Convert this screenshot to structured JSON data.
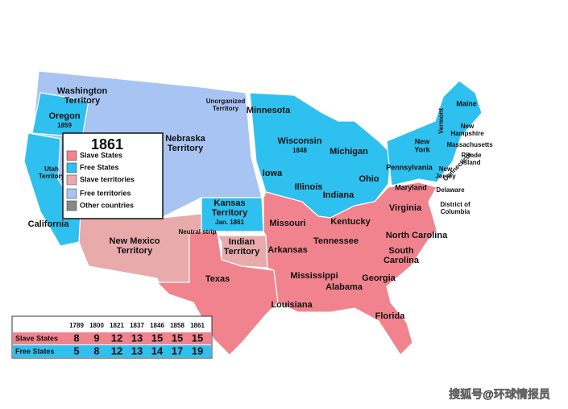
{
  "legend": {
    "title": "1861",
    "items": [
      {
        "label": "Slave States",
        "color": "#f0838d"
      },
      {
        "label": "Free States",
        "color": "#2ec0ee"
      },
      {
        "label": "Slave territories",
        "color": "#e8aaaa"
      },
      {
        "label": "Free territories",
        "color": "#a8c4f2"
      },
      {
        "label": "Other countries",
        "color": "#888888"
      }
    ]
  },
  "labels": [
    {
      "lines": [
        "Washington",
        "Territory"
      ]
    },
    {
      "lines": [
        "Oregon"
      ],
      "note": "1859"
    },
    {
      "lines": [
        "Nebraska",
        "Territory"
      ]
    },
    {
      "lines": [
        "Unorganized",
        "Territory"
      ]
    },
    {
      "lines": [
        "Minnesota"
      ]
    },
    {
      "lines": [
        "Wisconsin"
      ],
      "note": "1848"
    },
    {
      "lines": [
        "Michigan"
      ]
    },
    {
      "lines": [
        "Iowa"
      ]
    },
    {
      "lines": [
        "Illinois"
      ]
    },
    {
      "lines": [
        "Indiana"
      ]
    },
    {
      "lines": [
        "Ohio"
      ]
    },
    {
      "lines": [
        "Pennsylvania"
      ]
    },
    {
      "lines": [
        "New",
        "York"
      ]
    },
    {
      "lines": [
        "Maine"
      ]
    },
    {
      "lines": [
        "Vermont"
      ]
    },
    {
      "lines": [
        "New",
        "Hampshire"
      ]
    },
    {
      "lines": [
        "Massachusetts"
      ]
    },
    {
      "lines": [
        "Rhode",
        "Island"
      ]
    },
    {
      "lines": [
        "Connecticut"
      ]
    },
    {
      "lines": [
        "New",
        "Jersey"
      ]
    },
    {
      "lines": [
        "Delaware"
      ]
    },
    {
      "lines": [
        "Maryland"
      ]
    },
    {
      "lines": [
        "District of",
        "Columbia"
      ]
    },
    {
      "lines": [
        "Virginia"
      ]
    },
    {
      "lines": [
        "Kentucky"
      ]
    },
    {
      "lines": [
        "Missouri"
      ]
    },
    {
      "lines": [
        "Kansas",
        "Territory"
      ],
      "note": "Jan. 1861"
    },
    {
      "lines": [
        "Tennessee"
      ]
    },
    {
      "lines": [
        "North Carolina"
      ]
    },
    {
      "lines": [
        "South",
        "Carolina"
      ]
    },
    {
      "lines": [
        "Arkansas"
      ]
    },
    {
      "lines": [
        "Mississippi"
      ]
    },
    {
      "lines": [
        "Alabama"
      ]
    },
    {
      "lines": [
        "Georgia"
      ]
    },
    {
      "lines": [
        "Louisiana"
      ]
    },
    {
      "lines": [
        "Florida"
      ]
    },
    {
      "lines": [
        "Texas"
      ]
    },
    {
      "lines": [
        "Indian",
        "Territory"
      ]
    },
    {
      "lines": [
        "Neutral strip"
      ]
    },
    {
      "lines": [
        "New Mexico",
        "Territory"
      ]
    },
    {
      "lines": [
        "California"
      ]
    },
    {
      "lines": [
        "Utah",
        "Territory"
      ]
    }
  ],
  "table": {
    "header": [
      "1789",
      "1800",
      "1821",
      "1837",
      "1846",
      "1858",
      "1861"
    ],
    "rows": [
      {
        "label": "Slave States",
        "values": [
          "8",
          "9",
          "12",
          "13",
          "15",
          "15",
          "15"
        ]
      },
      {
        "label": "Free States",
        "values": [
          "5",
          "8",
          "12",
          "13",
          "14",
          "17",
          "19"
        ]
      }
    ]
  },
  "watermark": "搜狐号@环球情报员"
}
